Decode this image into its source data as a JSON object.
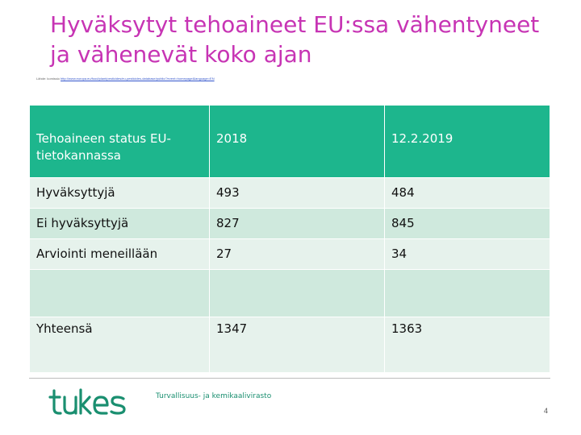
{
  "slide": {
    "title": "Hyväksytyt tehoaineet EU:ssa vähentyneet ja vähenevät koko ajan",
    "source_prefix": "Lähde: komissio",
    "source_url": "http://www.europa.eu/food/plant/pesticides/eu-pesticides-database/public/?event=homepage&language=EN",
    "agency": "Turvallisuus- ja kemikaalivirasto",
    "page_number": "4"
  },
  "table": {
    "headers": [
      "Tehoaineen status EU-tietokannassa",
      "2018",
      "12.2.2019"
    ],
    "rows": [
      [
        "Hyväksyttyjä",
        "493",
        "484"
      ],
      [
        "Ei hyväksyttyjä",
        "827",
        "845"
      ],
      [
        "Arviointi meneillään",
        "27",
        "34"
      ],
      [
        "",
        "",
        ""
      ],
      [
        "Yhteensä",
        "1347",
        "1363"
      ]
    ]
  },
  "logo": {
    "icon": "tukes-logo",
    "color": "#1a8f70"
  },
  "colors": {
    "title": "#c734b4",
    "header_bg": "#1db68d",
    "row_light": "#e6f2ec",
    "row_dark": "#cfe9dd"
  }
}
